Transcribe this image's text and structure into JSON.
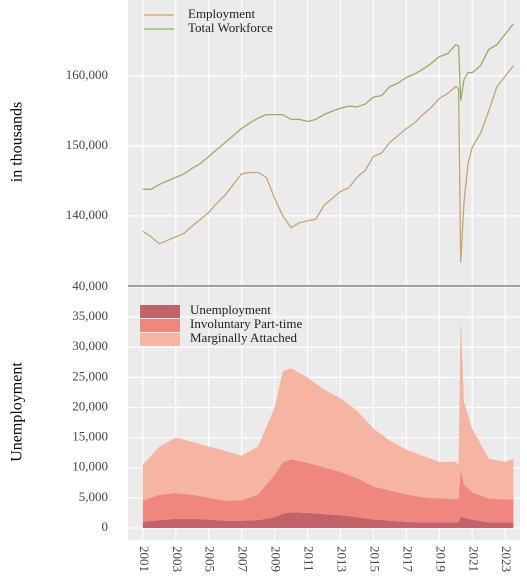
{
  "chart_data": [
    {
      "type": "line",
      "y_label": "in thousands",
      "xlim": [
        2000.1,
        2023.9
      ],
      "xticks": [
        2001,
        2003,
        2005,
        2007,
        2009,
        2011,
        2013,
        2015,
        2017,
        2019,
        2021,
        2023
      ],
      "ylim": [
        130100,
        170900
      ],
      "yticks": [
        {
          "value": 140000,
          "label": "140,000"
        },
        {
          "value": 150000,
          "label": "150,000"
        },
        {
          "value": 160000,
          "label": "160,000"
        }
      ],
      "grid": true,
      "legend": "upper left",
      "x": [
        2001.0,
        2001.5,
        2002.0,
        2002.5,
        2003.0,
        2003.5,
        2004.0,
        2004.5,
        2005.0,
        2005.5,
        2006.0,
        2006.5,
        2007.0,
        2007.5,
        2008.0,
        2008.5,
        2009.0,
        2009.5,
        2010.0,
        2010.5,
        2011.0,
        2011.5,
        2012.0,
        2012.5,
        2013.0,
        2013.5,
        2014.0,
        2014.5,
        2015.0,
        2015.5,
        2016.0,
        2016.5,
        2017.0,
        2017.5,
        2018.0,
        2018.5,
        2019.0,
        2019.5,
        2020.0,
        2020.17,
        2020.3,
        2020.5,
        2020.75,
        2021.0,
        2021.5,
        2022.0,
        2022.5,
        2023.0,
        2023.5
      ],
      "series": [
        {
          "name": "Employment",
          "color": "#c9a46c",
          "values": [
            137800,
            137000,
            136000,
            136500,
            137000,
            137500,
            138500,
            139500,
            140500,
            141800,
            143000,
            144500,
            146000,
            146200,
            146200,
            145500,
            142500,
            140000,
            138300,
            139000,
            139300,
            139500,
            141500,
            142500,
            143500,
            144000,
            145500,
            146500,
            148500,
            149000,
            150500,
            151500,
            152500,
            153300,
            154500,
            155500,
            156800,
            157500,
            158500,
            158200,
            133300,
            142000,
            147500,
            149800,
            151800,
            155000,
            158500,
            160000,
            161500
          ]
        },
        {
          "name": "Total Workforce",
          "color": "#8db35f",
          "values": [
            143800,
            143800,
            144500,
            145000,
            145500,
            146000,
            146800,
            147500,
            148500,
            149500,
            150500,
            151500,
            152500,
            153300,
            154000,
            154500,
            154500,
            154500,
            153800,
            153800,
            153500,
            153800,
            154500,
            155000,
            155400,
            155700,
            155600,
            156000,
            157000,
            157200,
            158500,
            159000,
            159800,
            160300,
            161000,
            161800,
            162800,
            163200,
            164500,
            164300,
            156500,
            159500,
            160500,
            160500,
            161500,
            163800,
            164500,
            166000,
            167500
          ]
        }
      ]
    },
    {
      "type": "area",
      "y_label": "Unemployment",
      "xlim": [
        2000.1,
        2023.9
      ],
      "xticks": [
        2001,
        2003,
        2005,
        2007,
        2009,
        2011,
        2013,
        2015,
        2017,
        2019,
        2021,
        2023
      ],
      "ylim": [
        -2000,
        40000
      ],
      "yticks": [
        0,
        {
          "value": 5000,
          "label": "5,000"
        },
        {
          "value": 10000,
          "label": "10,000"
        },
        {
          "value": 15000,
          "label": "15,000"
        },
        {
          "value": 20000,
          "label": "20,000"
        },
        {
          "value": 25000,
          "label": "25,000"
        },
        {
          "value": 30000,
          "label": "30,000"
        },
        {
          "value": 35000,
          "label": "35,000"
        },
        {
          "value": 40000,
          "label": "40,000"
        }
      ],
      "grid": true,
      "stacked": true,
      "legend": "upper left",
      "x": [
        2001,
        2002,
        2003,
        2004,
        2005,
        2006,
        2007,
        2008,
        2009,
        2009.5,
        2010,
        2011,
        2012,
        2013,
        2014,
        2015,
        2016,
        2017,
        2018,
        2019,
        2020.0,
        2020.17,
        2020.3,
        2020.5,
        2021,
        2022,
        2023,
        2023.5
      ],
      "series": [
        {
          "name": "Unemployment",
          "color": "#c2626a",
          "values": [
            1000,
            1300,
            1500,
            1500,
            1400,
            1200,
            1200,
            1300,
            1800,
            2400,
            2600,
            2500,
            2300,
            2100,
            1800,
            1400,
            1200,
            1000,
            900,
            900,
            900,
            900,
            2000,
            1700,
            1400,
            900,
            900,
            900
          ]
        },
        {
          "name": "Involuntary Part-time",
          "color": "#ef877f",
          "values": [
            3500,
            4200,
            4300,
            4000,
            3600,
            3300,
            3400,
            4300,
            7000,
            8500,
            8800,
            8300,
            7800,
            7200,
            6500,
            5500,
            5000,
            4600,
            4200,
            4000,
            3900,
            3900,
            8000,
            5500,
            4500,
            4000,
            3800,
            3900
          ]
        },
        {
          "name": "Marginally Attached",
          "color": "#f6b5a3",
          "values": [
            6000,
            8000,
            9200,
            8800,
            8500,
            8300,
            7400,
            7900,
            11200,
            15100,
            15100,
            14200,
            12900,
            12200,
            11200,
            9600,
            8300,
            7400,
            6900,
            6100,
            6200,
            5700,
            25000,
            13800,
            10600,
            6600,
            6300,
            6700
          ]
        }
      ]
    }
  ]
}
